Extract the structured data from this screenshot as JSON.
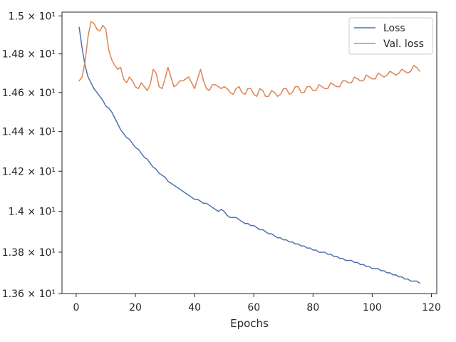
{
  "chart_data": {
    "type": "line",
    "title": "",
    "xlabel": "Epochs",
    "ylabel": "",
    "xlim": [
      -4.8,
      121.8
    ],
    "ylim": [
      13.6,
      15.02
    ],
    "y_scale": "log",
    "xticks": [
      0,
      20,
      40,
      60,
      80,
      100,
      120
    ],
    "yticks": [
      {
        "value": 13.6,
        "label": "1.36 × 10¹"
      },
      {
        "value": 13.8,
        "label": "1.38 × 10¹"
      },
      {
        "value": 14.0,
        "label": "1.4 × 10¹"
      },
      {
        "value": 14.2,
        "label": "1.42 × 10¹"
      },
      {
        "value": 14.4,
        "label": "1.44 × 10¹"
      },
      {
        "value": 14.6,
        "label": "1.46 × 10¹"
      },
      {
        "value": 14.8,
        "label": "1.48 × 10¹"
      },
      {
        "value": 15.0,
        "label": "1.5 × 10¹"
      }
    ],
    "grid": false,
    "legend_position": "top-right",
    "x": [
      1,
      2,
      3,
      4,
      5,
      6,
      7,
      8,
      9,
      10,
      11,
      12,
      13,
      14,
      15,
      16,
      17,
      18,
      19,
      20,
      21,
      22,
      23,
      24,
      25,
      26,
      27,
      28,
      29,
      30,
      31,
      32,
      33,
      34,
      35,
      36,
      37,
      38,
      39,
      40,
      41,
      42,
      43,
      44,
      45,
      46,
      47,
      48,
      49,
      50,
      51,
      52,
      53,
      54,
      55,
      56,
      57,
      58,
      59,
      60,
      61,
      62,
      63,
      64,
      65,
      66,
      67,
      68,
      69,
      70,
      71,
      72,
      73,
      74,
      75,
      76,
      77,
      78,
      79,
      80,
      81,
      82,
      83,
      84,
      85,
      86,
      87,
      88,
      89,
      90,
      91,
      92,
      93,
      94,
      95,
      96,
      97,
      98,
      99,
      100,
      101,
      102,
      103,
      104,
      105,
      106,
      107,
      108,
      109,
      110,
      111,
      112,
      113,
      114,
      115,
      116
    ],
    "series": [
      {
        "name": "Loss",
        "color": "#4c72b0",
        "values": [
          14.94,
          14.83,
          14.74,
          14.68,
          14.65,
          14.62,
          14.6,
          14.58,
          14.56,
          14.53,
          14.52,
          14.5,
          14.47,
          14.44,
          14.41,
          14.39,
          14.37,
          14.36,
          14.34,
          14.32,
          14.31,
          14.29,
          14.27,
          14.26,
          14.24,
          14.22,
          14.21,
          14.19,
          14.18,
          14.17,
          14.15,
          14.14,
          14.13,
          14.12,
          14.11,
          14.1,
          14.09,
          14.08,
          14.07,
          14.06,
          14.06,
          14.05,
          14.04,
          14.04,
          14.03,
          14.02,
          14.01,
          14.0,
          14.01,
          14.0,
          13.98,
          13.97,
          13.97,
          13.97,
          13.96,
          13.95,
          13.94,
          13.94,
          13.93,
          13.93,
          13.92,
          13.91,
          13.91,
          13.9,
          13.89,
          13.89,
          13.88,
          13.87,
          13.87,
          13.86,
          13.86,
          13.85,
          13.85,
          13.84,
          13.84,
          13.83,
          13.83,
          13.82,
          13.82,
          13.81,
          13.81,
          13.8,
          13.8,
          13.8,
          13.79,
          13.79,
          13.78,
          13.78,
          13.77,
          13.77,
          13.76,
          13.76,
          13.76,
          13.75,
          13.75,
          13.74,
          13.74,
          13.73,
          13.73,
          13.72,
          13.72,
          13.72,
          13.71,
          13.71,
          13.7,
          13.7,
          13.69,
          13.69,
          13.68,
          13.68,
          13.67,
          13.67,
          13.66,
          13.66,
          13.66,
          13.65
        ]
      },
      {
        "name": "Val. loss",
        "color": "#dd8452",
        "values": [
          14.66,
          14.68,
          14.76,
          14.89,
          14.97,
          14.96,
          14.93,
          14.92,
          14.95,
          14.93,
          14.82,
          14.77,
          14.74,
          14.72,
          14.73,
          14.67,
          14.65,
          14.68,
          14.66,
          14.63,
          14.62,
          14.65,
          14.63,
          14.61,
          14.64,
          14.72,
          14.7,
          14.63,
          14.62,
          14.67,
          14.73,
          14.68,
          14.63,
          14.64,
          14.66,
          14.66,
          14.67,
          14.68,
          14.65,
          14.62,
          14.67,
          14.72,
          14.66,
          14.62,
          14.61,
          14.64,
          14.64,
          14.63,
          14.62,
          14.63,
          14.62,
          14.6,
          14.59,
          14.62,
          14.63,
          14.6,
          14.59,
          14.62,
          14.62,
          14.59,
          14.58,
          14.62,
          14.61,
          14.58,
          14.58,
          14.61,
          14.6,
          14.58,
          14.59,
          14.62,
          14.62,
          14.59,
          14.6,
          14.63,
          14.63,
          14.6,
          14.6,
          14.63,
          14.63,
          14.61,
          14.61,
          14.64,
          14.63,
          14.62,
          14.62,
          14.65,
          14.64,
          14.63,
          14.63,
          14.66,
          14.66,
          14.65,
          14.65,
          14.68,
          14.67,
          14.66,
          14.66,
          14.69,
          14.68,
          14.67,
          14.67,
          14.7,
          14.69,
          14.68,
          14.69,
          14.71,
          14.7,
          14.69,
          14.7,
          14.72,
          14.71,
          14.7,
          14.71,
          14.74,
          14.73,
          14.71
        ]
      }
    ]
  }
}
